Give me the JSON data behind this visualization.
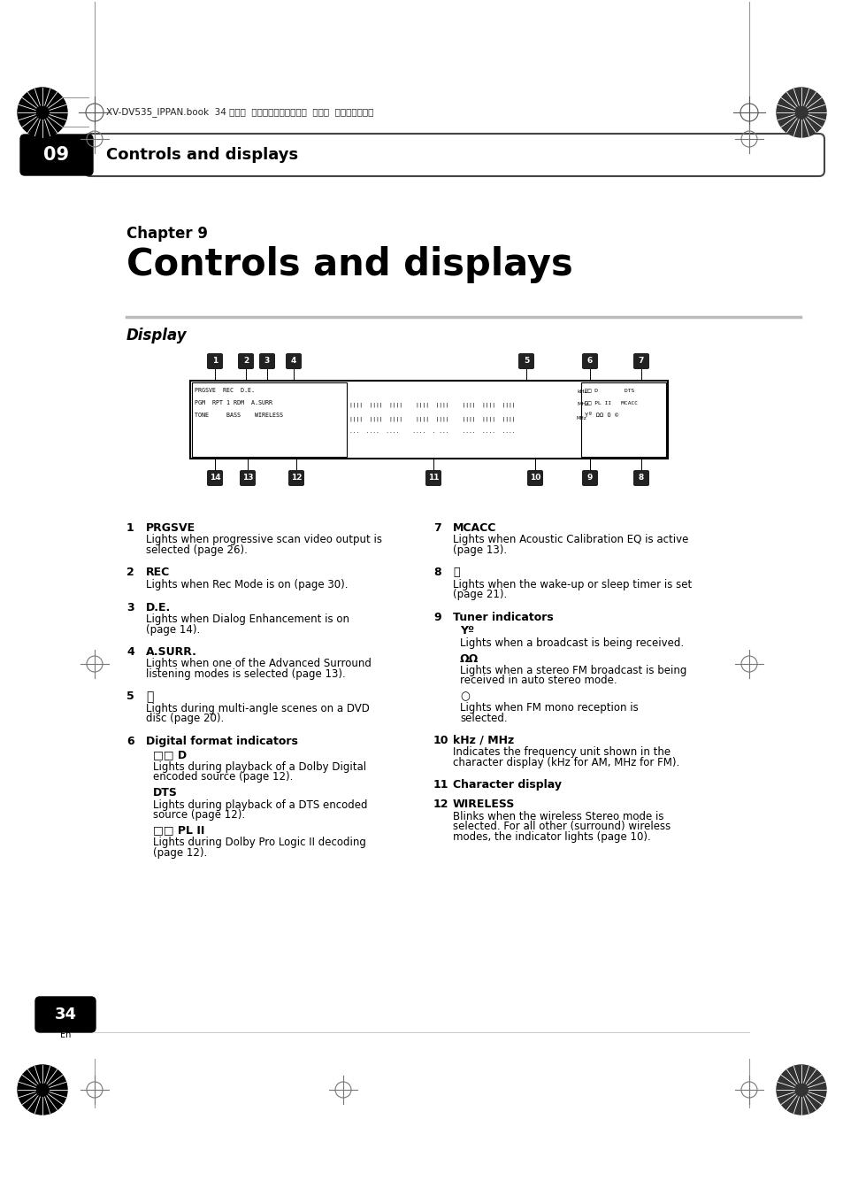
{
  "bg_color": "#ffffff",
  "page_header_text": "XV-DV535_IPPAN.book  34 ページ  ２００５年２月２３日  水曜日  午後２時５６分",
  "chapter_label": "Chapter 9",
  "chapter_title": "Controls and displays",
  "section_label": "Display",
  "tab_number": "09",
  "tab_text": "Controls and displays",
  "page_number": "34",
  "items_left": [
    {
      "num": "1",
      "title": "PRGSVE",
      "bold_title": true,
      "body": "Lights when progressive scan video output is\nselected (page 26)."
    },
    {
      "num": "2",
      "title": "REC",
      "bold_title": true,
      "body": "Lights when Rec Mode is on (page 30)."
    },
    {
      "num": "3",
      "title": "D.E.",
      "bold_title": true,
      "body": "Lights when Dialog Enhancement is on\n(page 14)."
    },
    {
      "num": "4",
      "title": "A.SURR.",
      "bold_title": true,
      "body": "Lights when one of the Advanced Surround\nlistening modes is selected (page 13)."
    },
    {
      "num": "5",
      "title": "camera_icon",
      "bold_title": false,
      "body": "Lights during multi-angle scenes on a DVD\ndisc (page 20)."
    },
    {
      "num": "6",
      "title": "Digital format indicators",
      "bold_title": true,
      "body": "",
      "sub": [
        {
          "subtitle": "□□ D",
          "body": "Lights during playback of a Dolby Digital\nencoded source (page 12)."
        },
        {
          "subtitle": "DTS",
          "body": "Lights during playback of a DTS encoded\nsource (page 12)."
        },
        {
          "subtitle": "□□ PL II",
          "body": "Lights during Dolby Pro Logic II decoding\n(page 12)."
        }
      ]
    }
  ],
  "items_right": [
    {
      "num": "7",
      "title": "MCACC",
      "bold_title": true,
      "body": "Lights when Acoustic Calibration EQ is active\n(page 13)."
    },
    {
      "num": "8",
      "title": "timer_icon",
      "bold_title": false,
      "body": "Lights when the wake-up or sleep timer is set\n(page 21)."
    },
    {
      "num": "9",
      "title": "Tuner indicators",
      "bold_title": true,
      "body": "",
      "sub": [
        {
          "subtitle": "Yº",
          "body": "Lights when a broadcast is being received."
        },
        {
          "subtitle": "ΩΩ",
          "body": "Lights when a stereo FM broadcast is being\nreceived in auto stereo mode."
        },
        {
          "subtitle": "○",
          "body": "Lights when FM mono reception is\nselected."
        }
      ]
    },
    {
      "num": "10",
      "title": "kHz / MHz",
      "bold_title": true,
      "body": "Indicates the frequency unit shown in the\ncharacter display (kHz for AM, MHz for FM)."
    },
    {
      "num": "11",
      "title": "Character display",
      "bold_title": true,
      "body": ""
    },
    {
      "num": "12",
      "title": "WIRELESS",
      "bold_title": true,
      "body": "Blinks when the wireless Stereo mode is\nselected. For all other (surround) wireless\nmodes, the indicator lights (page 10)."
    }
  ]
}
